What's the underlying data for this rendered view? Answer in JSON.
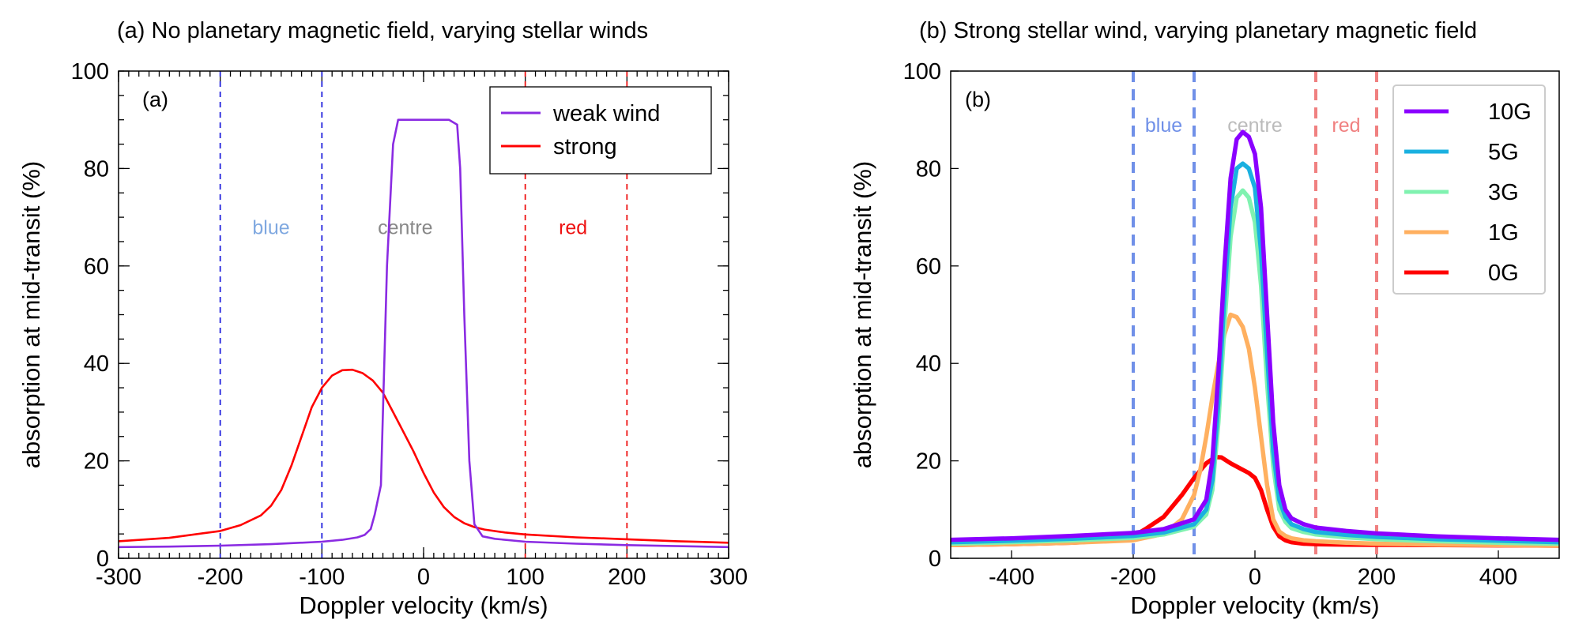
{
  "chart_data": [
    {
      "type": "line",
      "title": "(a) No planetary magnetic field, varying stellar winds",
      "panel_tag": "(a)",
      "xlabel": "Doppler velocity (km/s)",
      "ylabel": "absorption at mid-transit (%)",
      "xlim": [
        -300,
        300
      ],
      "ylim": [
        0,
        100
      ],
      "xticks": [
        -300,
        -200,
        -100,
        0,
        100,
        200,
        300
      ],
      "yticks": [
        0,
        20,
        40,
        60,
        80,
        100
      ],
      "minor_x_step": 10,
      "minor_y_step": 5,
      "legend_position": "top-right",
      "vlines": [
        {
          "x": -200,
          "color": "#2222dd",
          "style": "dashed"
        },
        {
          "x": -100,
          "color": "#2222dd",
          "style": "dashed"
        },
        {
          "x": 100,
          "color": "#ee1111",
          "style": "dashed"
        },
        {
          "x": 200,
          "color": "#ee1111",
          "style": "dashed"
        }
      ],
      "regions": [
        {
          "label": "blue",
          "x": -150,
          "y": 68,
          "color": "#7fa8e0"
        },
        {
          "label": "centre",
          "x": -18,
          "y": 68,
          "color": "#888888"
        },
        {
          "label": "red",
          "x": 147,
          "y": 68,
          "color": "#ee1111"
        }
      ],
      "series": [
        {
          "name": "weak wind",
          "color": "#8a2be2",
          "x": [
            -300,
            -250,
            -200,
            -150,
            -100,
            -80,
            -65,
            -58,
            -52,
            -48,
            -42,
            -36,
            -30,
            -25,
            0,
            25,
            33,
            36,
            40,
            45,
            50,
            58,
            70,
            100,
            150,
            200,
            250,
            300
          ],
          "y": [
            2.3,
            2.4,
            2.6,
            2.9,
            3.4,
            3.8,
            4.3,
            4.8,
            6,
            9,
            15,
            60,
            85,
            90,
            90,
            90,
            89,
            80,
            50,
            20,
            7,
            4.5,
            4,
            3.4,
            3,
            2.7,
            2.5,
            2.3
          ]
        },
        {
          "name": "strong",
          "color": "#ff0000",
          "x": [
            -300,
            -250,
            -200,
            -180,
            -160,
            -150,
            -140,
            -130,
            -120,
            -110,
            -100,
            -90,
            -80,
            -70,
            -60,
            -50,
            -40,
            -30,
            -20,
            -10,
            0,
            10,
            20,
            30,
            40,
            50,
            60,
            80,
            100,
            150,
            200,
            250,
            300
          ],
          "y": [
            3.5,
            4.2,
            5.6,
            6.8,
            8.8,
            10.8,
            14,
            19,
            25,
            31,
            35,
            37.5,
            38.6,
            38.7,
            38,
            36.5,
            34,
            30,
            26,
            22,
            17.5,
            13.5,
            10.5,
            8.5,
            7.2,
            6.4,
            5.9,
            5.3,
            4.9,
            4.3,
            3.9,
            3.5,
            3.2
          ]
        }
      ]
    },
    {
      "type": "line",
      "title": "(b) Strong stellar wind, varying planetary magnetic field",
      "panel_tag": "(b)",
      "xlabel": "Doppler velocity (km/s)",
      "ylabel": "absorption at mid-transit (%)",
      "xlim": [
        -500,
        500
      ],
      "ylim": [
        0,
        100
      ],
      "xticks": [
        -400,
        -200,
        0,
        200,
        400
      ],
      "yticks": [
        0,
        20,
        40,
        60,
        80,
        100
      ],
      "legend_position": "top-right",
      "vlines": [
        {
          "x": -200,
          "color": "#7090e8",
          "style": "dashed"
        },
        {
          "x": -100,
          "color": "#7090e8",
          "style": "dashed"
        },
        {
          "x": 100,
          "color": "#f08080",
          "style": "dashed"
        },
        {
          "x": 200,
          "color": "#f08080",
          "style": "dashed"
        }
      ],
      "regions": [
        {
          "label": "blue",
          "x": -150,
          "y": 89,
          "color": "#7090e8"
        },
        {
          "label": "centre",
          "x": 0,
          "y": 89,
          "color": "#bbbbbb"
        },
        {
          "label": "red",
          "x": 150,
          "y": 89,
          "color": "#f08080"
        }
      ],
      "series": [
        {
          "name": "10G",
          "color": "#8a00ff",
          "x": [
            -500,
            -400,
            -300,
            -200,
            -150,
            -100,
            -80,
            -70,
            -60,
            -50,
            -40,
            -30,
            -20,
            -10,
            0,
            10,
            20,
            30,
            40,
            50,
            60,
            80,
            100,
            150,
            200,
            300,
            400,
            500
          ],
          "y": [
            3.8,
            4.1,
            4.6,
            5.2,
            6,
            8,
            12,
            20,
            38,
            60,
            78,
            86,
            87.5,
            86.5,
            83,
            72,
            50,
            28,
            15,
            10,
            8.2,
            7,
            6.3,
            5.6,
            5.1,
            4.5,
            4.1,
            3.8
          ]
        },
        {
          "name": "5G",
          "color": "#1ab0e0",
          "x": [
            -500,
            -400,
            -300,
            -200,
            -150,
            -100,
            -80,
            -70,
            -60,
            -50,
            -40,
            -30,
            -20,
            -10,
            0,
            10,
            20,
            30,
            40,
            50,
            60,
            80,
            100,
            150,
            200,
            300,
            400,
            500
          ],
          "y": [
            3.3,
            3.6,
            4,
            4.6,
            5.3,
            7,
            10,
            16,
            32,
            54,
            72,
            80,
            81,
            80,
            76,
            63,
            42,
            22,
            12,
            8.5,
            7,
            6,
            5.4,
            4.8,
            4.4,
            3.9,
            3.6,
            3.3
          ]
        },
        {
          "name": "3G",
          "color": "#80f2b0",
          "x": [
            -500,
            -400,
            -300,
            -200,
            -150,
            -100,
            -80,
            -70,
            -60,
            -50,
            -40,
            -30,
            -20,
            -10,
            0,
            10,
            20,
            30,
            40,
            50,
            60,
            80,
            100,
            150,
            200,
            300,
            400,
            500
          ],
          "y": [
            3,
            3.3,
            3.7,
            4.2,
            4.9,
            6.5,
            9,
            14,
            28,
            48,
            66,
            74,
            75.5,
            74,
            69,
            56,
            36,
            19,
            10,
            7.5,
            6.2,
            5.4,
            4.9,
            4.3,
            3.9,
            3.5,
            3.2,
            3
          ]
        },
        {
          "name": "1G",
          "color": "#ffb060",
          "x": [
            -500,
            -400,
            -300,
            -200,
            -150,
            -120,
            -100,
            -90,
            -80,
            -70,
            -60,
            -50,
            -40,
            -30,
            -20,
            -10,
            0,
            10,
            20,
            30,
            40,
            50,
            60,
            80,
            100,
            150,
            200,
            300,
            400,
            500
          ],
          "y": [
            2.7,
            2.9,
            3.2,
            3.7,
            5,
            8,
            13,
            18,
            25,
            33,
            40,
            46,
            50,
            49.5,
            47.5,
            43,
            35,
            25,
            15,
            8,
            5.5,
            4.6,
            4.1,
            3.7,
            3.5,
            3.2,
            3,
            2.8,
            2.7,
            2.6
          ]
        },
        {
          "name": "0G",
          "color": "#ff0000",
          "x": [
            -500,
            -400,
            -300,
            -220,
            -200,
            -180,
            -150,
            -120,
            -100,
            -80,
            -65,
            -55,
            -40,
            -25,
            -10,
            0,
            10,
            20,
            30,
            40,
            50,
            60,
            80,
            100,
            150,
            200,
            300,
            400,
            500
          ],
          "y": [
            2.7,
            2.9,
            3.2,
            3.8,
            4.5,
            6,
            8.5,
            13,
            16.5,
            19.5,
            20.8,
            20.7,
            19.5,
            18.5,
            17.5,
            16.5,
            14,
            10,
            6.5,
            4.5,
            3.7,
            3.3,
            3,
            2.9,
            2.8,
            2.75,
            2.7,
            2.65,
            2.6
          ]
        }
      ]
    }
  ]
}
